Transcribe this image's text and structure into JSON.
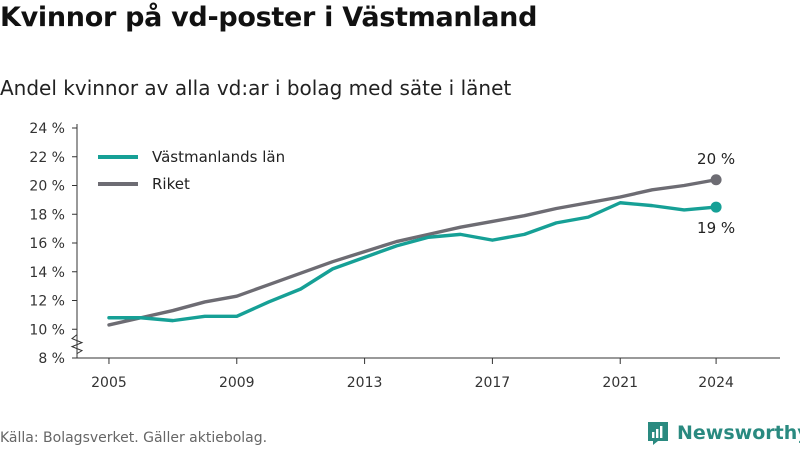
{
  "title": "Kvinnor på vd-poster i Västmanland",
  "subtitle": "Andel kvinnor av alla vd:ar i bolag med säte i länet",
  "source": "Källa: Bolagsverket. Gäller aktiebolag.",
  "brand": {
    "name": "Newsworthy",
    "icon": "newsworthy-logo-icon",
    "color": "#2a8a80"
  },
  "chart_data": {
    "type": "line",
    "x": [
      2005,
      2006,
      2007,
      2008,
      2009,
      2010,
      2011,
      2012,
      2013,
      2014,
      2015,
      2016,
      2017,
      2018,
      2019,
      2020,
      2021,
      2022,
      2023,
      2024
    ],
    "series": [
      {
        "name": "Västmanlands län",
        "color": "#16a096",
        "values": [
          10.8,
          10.8,
          10.6,
          10.9,
          10.9,
          11.9,
          12.8,
          14.2,
          15.0,
          15.8,
          16.4,
          16.6,
          16.2,
          16.6,
          17.4,
          17.8,
          18.8,
          18.6,
          18.3,
          18.5
        ],
        "end_label": "19 %"
      },
      {
        "name": "Riket",
        "color": "#6d6c73",
        "values": [
          10.3,
          10.8,
          11.3,
          11.9,
          12.3,
          13.1,
          13.9,
          14.7,
          15.4,
          16.1,
          16.6,
          17.1,
          17.5,
          17.9,
          18.4,
          18.8,
          19.2,
          19.7,
          20.0,
          20.4
        ],
        "end_label": "20 %"
      }
    ],
    "y_ticks": [
      8,
      10,
      12,
      14,
      16,
      18,
      20,
      22,
      24
    ],
    "y_tick_labels": [
      "8 %",
      "10 %",
      "12 %",
      "14 %",
      "16 %",
      "18 %",
      "20 %",
      "22 %",
      "24 %"
    ],
    "x_ticks": [
      2005,
      2009,
      2013,
      2017,
      2021,
      2024
    ],
    "ylim": [
      8,
      24
    ],
    "y_axis_break": true,
    "grid": false,
    "legend_position": "top-left"
  }
}
